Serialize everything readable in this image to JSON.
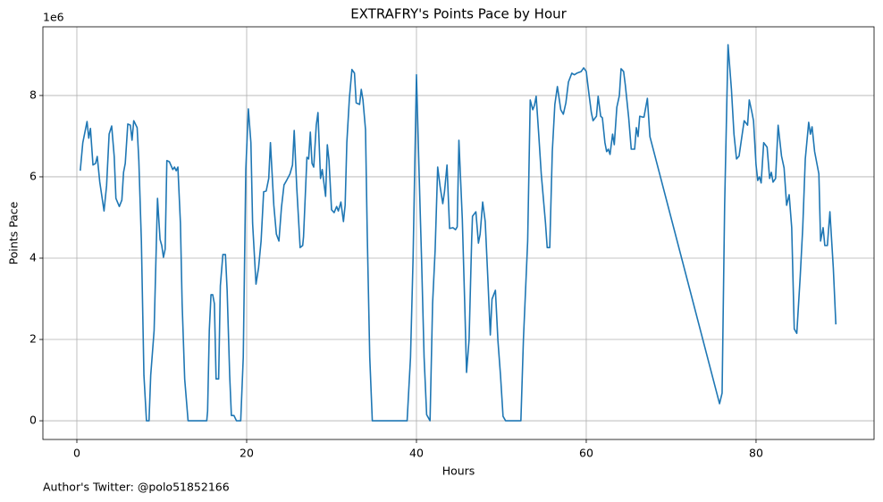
{
  "chart_data": {
    "type": "line",
    "title": "EXTRAFRY's Points Pace by Hour",
    "x_label": "Hours",
    "y_label": "Points Pace",
    "y_offset_label": "1e6",
    "footnote": "Author's Twitter: @polo51852166",
    "grid": true,
    "xlim": [
      -4,
      93.9
    ],
    "ylim": [
      -0.46,
      9.69
    ],
    "xticks": [
      0,
      20,
      40,
      60,
      80
    ],
    "yticks": [
      0,
      2,
      4,
      6,
      8
    ],
    "series": [
      {
        "color": "#1f77b4",
        "x": [
          0.4,
          0.7,
          1.2,
          1.4,
          1.6,
          1.9,
          2.2,
          2.4,
          2.7,
          3.2,
          3.5,
          3.8,
          4.1,
          4.4,
          4.6,
          5.0,
          5.3,
          5.5,
          5.7,
          6.0,
          6.3,
          6.5,
          6.7,
          7.1,
          7.3,
          7.6,
          7.9,
          8.2,
          8.5,
          8.7,
          9.1,
          9.5,
          9.8,
          10.0,
          10.2,
          10.4,
          10.6,
          10.9,
          11.3,
          11.5,
          11.7,
          11.9,
          12.2,
          12.4,
          12.7,
          13.1,
          15.3,
          15.4,
          15.6,
          15.8,
          16.0,
          16.2,
          16.4,
          16.7,
          16.9,
          17.2,
          17.5,
          17.7,
          18.0,
          18.2,
          18.5,
          18.8,
          19.3,
          19.6,
          19.9,
          20.2,
          20.5,
          20.7,
          21.1,
          21.4,
          21.7,
          22.0,
          22.3,
          22.6,
          22.8,
          23.2,
          23.5,
          23.8,
          24.1,
          24.4,
          24.7,
          25.1,
          25.4,
          25.6,
          25.9,
          26.3,
          26.6,
          26.7,
          27.1,
          27.3,
          27.5,
          27.7,
          27.9,
          28.2,
          28.4,
          28.7,
          28.9,
          29.3,
          29.5,
          29.7,
          30.0,
          30.3,
          30.6,
          30.8,
          31.1,
          31.4,
          31.6,
          31.8,
          32.1,
          32.4,
          32.7,
          32.9,
          33.3,
          33.5,
          33.7,
          34.0,
          34.2,
          34.5,
          34.8,
          38.9,
          39.3,
          39.6,
          40.0,
          40.3,
          40.6,
          40.9,
          41.2,
          41.6,
          41.9,
          42.2,
          42.5,
          42.8,
          43.1,
          43.3,
          43.6,
          43.9,
          44.3,
          44.6,
          44.8,
          45.0,
          45.4,
          45.7,
          45.9,
          46.2,
          46.5,
          46.6,
          47.0,
          47.3,
          47.5,
          47.8,
          48.1,
          48.4,
          48.7,
          48.9,
          49.3,
          49.6,
          49.9,
          50.2,
          50.5,
          52.3,
          52.6,
          53.1,
          53.4,
          53.7,
          53.9,
          54.1,
          54.4,
          54.7,
          55.2,
          55.4,
          55.7,
          56.0,
          56.3,
          56.6,
          57.0,
          57.3,
          57.6,
          57.9,
          58.3,
          58.6,
          58.9,
          59.4,
          59.7,
          60.0,
          60.3,
          60.6,
          60.8,
          61.2,
          61.4,
          61.7,
          61.9,
          62.2,
          62.4,
          62.6,
          62.8,
          63.1,
          63.3,
          63.6,
          63.9,
          64.1,
          64.4,
          64.6,
          65.0,
          65.3,
          65.7,
          65.9,
          66.1,
          66.3,
          66.6,
          66.8,
          67.2,
          67.5,
          75.7,
          76.0,
          76.3,
          76.7,
          77.1,
          77.4,
          77.7,
          78.0,
          78.3,
          78.6,
          79.0,
          79.2,
          79.5,
          79.7,
          80.0,
          80.2,
          80.4,
          80.6,
          80.9,
          81.3,
          81.6,
          81.8,
          82.0,
          82.3,
          82.6,
          83.0,
          83.3,
          83.6,
          83.9,
          84.2,
          84.5,
          84.8,
          85.2,
          85.5,
          85.8,
          86.2,
          86.4,
          86.6,
          86.9,
          87.4,
          87.6,
          87.9,
          88.1,
          88.4,
          88.7,
          89.1,
          89.4
        ],
        "values": [
          6.15,
          6.84,
          7.36,
          6.95,
          7.19,
          6.29,
          6.33,
          6.5,
          5.87,
          5.16,
          5.78,
          7.05,
          7.25,
          6.5,
          5.47,
          5.27,
          5.43,
          6.11,
          6.33,
          7.3,
          7.27,
          6.9,
          7.38,
          7.21,
          6.4,
          4.42,
          1.12,
          0,
          0,
          1.12,
          2.22,
          5.47,
          4.46,
          4.31,
          4.02,
          4.22,
          6.4,
          6.37,
          6.18,
          6.24,
          6.15,
          6.24,
          4.86,
          2.88,
          1.03,
          0,
          0,
          0.24,
          2.22,
          3.1,
          3.1,
          2.88,
          1.03,
          1.03,
          3.32,
          4.09,
          4.09,
          3.21,
          1.12,
          0.13,
          0.13,
          0,
          0,
          1.56,
          6.18,
          7.67,
          6.84,
          4.86,
          3.36,
          3.76,
          4.42,
          5.63,
          5.65,
          5.96,
          6.84,
          5.3,
          4.59,
          4.42,
          5.25,
          5.8,
          5.91,
          6.07,
          6.29,
          7.14,
          5.74,
          4.26,
          4.31,
          4.53,
          6.48,
          6.44,
          7.1,
          6.33,
          6.24,
          7.27,
          7.58,
          5.96,
          6.18,
          5.52,
          6.79,
          6.4,
          5.19,
          5.12,
          5.27,
          5.16,
          5.38,
          4.9,
          5.3,
          6.84,
          7.93,
          8.64,
          8.55,
          7.82,
          7.78,
          8.15,
          7.89,
          7.16,
          4.64,
          1.56,
          0,
          0,
          1.56,
          3.98,
          8.51,
          6.18,
          3.98,
          1.56,
          0.15,
          0,
          2.88,
          4.2,
          6.24,
          5.74,
          5.34,
          5.63,
          6.29,
          4.73,
          4.75,
          4.7,
          4.77,
          6.9,
          4.97,
          2.77,
          1.19,
          2.0,
          4.42,
          5.03,
          5.14,
          4.37,
          4.59,
          5.38,
          4.9,
          3.54,
          2.11,
          2.99,
          3.21,
          1.96,
          1.12,
          0.11,
          0,
          0,
          2.0,
          4.42,
          7.89,
          7.65,
          7.76,
          7.98,
          7.05,
          6.07,
          4.86,
          4.26,
          4.26,
          6.62,
          7.78,
          8.22,
          7.65,
          7.54,
          7.82,
          8.33,
          8.55,
          8.51,
          8.55,
          8.59,
          8.68,
          8.59,
          8.07,
          7.58,
          7.38,
          7.49,
          7.98,
          7.49,
          7.45,
          6.84,
          6.62,
          6.68,
          6.55,
          7.05,
          6.79,
          7.71,
          8.0,
          8.66,
          8.59,
          8.26,
          7.45,
          6.68,
          6.68,
          7.21,
          6.99,
          7.49,
          7.47,
          7.47,
          7.93,
          6.99,
          0.42,
          0.68,
          5.3,
          9.25,
          8.15,
          7.05,
          6.44,
          6.51,
          6.95,
          7.38,
          7.27,
          7.89,
          7.6,
          7.38,
          6.29,
          5.91,
          6.0,
          5.85,
          6.84,
          6.73,
          5.96,
          6.11,
          5.87,
          5.96,
          7.27,
          6.51,
          6.22,
          5.3,
          5.56,
          4.75,
          2.26,
          2.15,
          3.54,
          4.75,
          6.44,
          7.34,
          7.05,
          7.23,
          6.62,
          6.07,
          4.42,
          4.75,
          4.31,
          4.31,
          5.14,
          3.76,
          2.37
        ]
      }
    ]
  }
}
